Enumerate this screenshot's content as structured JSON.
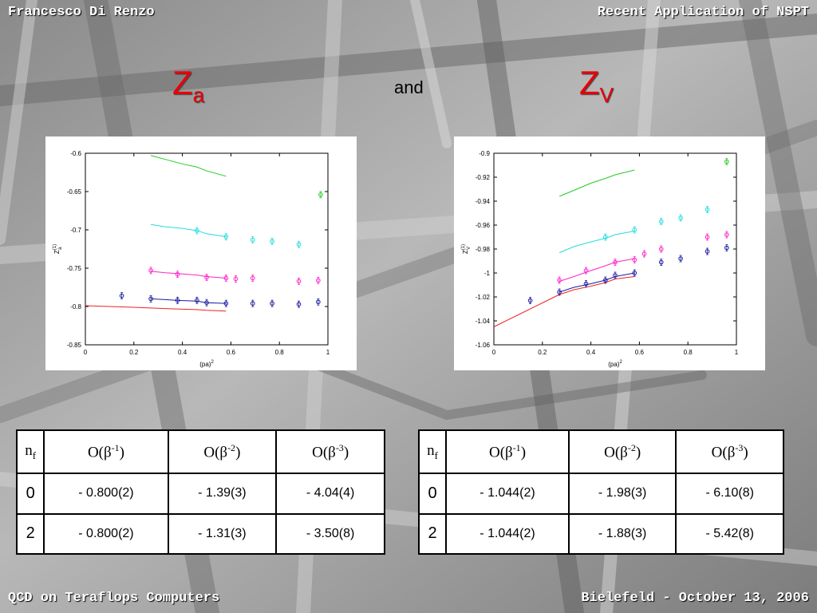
{
  "header": {
    "left": "Francesco Di Renzo",
    "right": "Recent Application of NSPT"
  },
  "footer": {
    "left": "QCD on Teraflops Computers",
    "right": "Bielefeld - October 13, 2006"
  },
  "titles": {
    "za_main": "Z",
    "za_sub": "a",
    "and": "and",
    "zv_main": "Z",
    "zv_sub": "V"
  },
  "colors": {
    "title_red": "#e8000a",
    "green": "#22cc22",
    "cyan": "#22dddd",
    "magenta": "#ff22cc",
    "blue": "#1a1aa0",
    "red": "#ee2222"
  },
  "chart_data": [
    {
      "type": "line",
      "ylabel_main": "Z",
      "ylabel_sup": "(1)",
      "ylabel_sub": "a",
      "xlabel_main": "(pa)",
      "xlabel_sup": "2",
      "xlim": [
        0,
        1
      ],
      "ylim": [
        -0.85,
        -0.6
      ],
      "xticks": [
        "0",
        "0.2",
        "0.4",
        "0.6",
        "0.8",
        "1"
      ],
      "yticks": [
        "-0.6",
        "-0.65",
        "-0.7",
        "-0.75",
        "-0.8",
        "-0.85"
      ],
      "lines": [
        {
          "color": "green",
          "x": [
            0.27,
            0.33,
            0.4,
            0.46,
            0.5,
            0.58
          ],
          "y": [
            -0.603,
            -0.608,
            -0.614,
            -0.618,
            -0.623,
            -0.63
          ]
        },
        {
          "color": "cyan",
          "x": [
            0.27,
            0.33,
            0.4,
            0.46,
            0.5,
            0.58
          ],
          "y": [
            -0.693,
            -0.696,
            -0.698,
            -0.701,
            -0.705,
            -0.709
          ]
        },
        {
          "color": "magenta",
          "x": [
            0.27,
            0.33,
            0.38,
            0.46,
            0.5,
            0.58
          ],
          "y": [
            -0.754,
            -0.756,
            -0.757,
            -0.759,
            -0.761,
            -0.763
          ]
        },
        {
          "color": "blue",
          "x": [
            0.27,
            0.33,
            0.38,
            0.46,
            0.5,
            0.58
          ],
          "y": [
            -0.79,
            -0.791,
            -0.792,
            -0.793,
            -0.795,
            -0.796
          ]
        },
        {
          "color": "red",
          "x": [
            0,
            0.1,
            0.2,
            0.27,
            0.35,
            0.46,
            0.5,
            0.58
          ],
          "y": [
            -0.799,
            -0.8,
            -0.801,
            -0.802,
            -0.803,
            -0.804,
            -0.805,
            -0.806
          ]
        }
      ],
      "points": [
        {
          "color": "green",
          "x": [
            0.97
          ],
          "y": [
            -0.654
          ]
        },
        {
          "color": "cyan",
          "x": [
            0.46,
            0.58,
            0.69,
            0.77,
            0.88
          ],
          "y": [
            -0.701,
            -0.709,
            -0.713,
            -0.715,
            -0.719
          ]
        },
        {
          "color": "magenta",
          "x": [
            0.27,
            0.38,
            0.5,
            0.58,
            0.62,
            0.69,
            0.88,
            0.96
          ],
          "y": [
            -0.753,
            -0.758,
            -0.762,
            -0.763,
            -0.764,
            -0.763,
            -0.767,
            -0.766
          ]
        },
        {
          "color": "blue",
          "x": [
            0.15,
            0.27,
            0.38,
            0.46,
            0.5,
            0.58,
            0.69,
            0.77,
            0.88,
            0.96
          ],
          "y": [
            -0.786,
            -0.79,
            -0.792,
            -0.792,
            -0.795,
            -0.796,
            -0.796,
            -0.796,
            -0.797,
            -0.794
          ]
        }
      ]
    },
    {
      "type": "line",
      "ylabel_main": "Z",
      "ylabel_sup": "(1)",
      "ylabel_sub": "V",
      "xlabel_main": "(pa)",
      "xlabel_sup": "2",
      "xlim": [
        0,
        1
      ],
      "ylim": [
        -1.06,
        -0.9
      ],
      "xticks": [
        "0",
        "0.2",
        "0.4",
        "0.6",
        "0.8",
        "1"
      ],
      "yticks": [
        "-0.9",
        "-0.92",
        "-0.94",
        "-0.96",
        "-0.98",
        "-1",
        "-1.02",
        "-1.04",
        "-1.06"
      ],
      "lines": [
        {
          "color": "green",
          "x": [
            0.27,
            0.33,
            0.4,
            0.46,
            0.5,
            0.58
          ],
          "y": [
            -0.936,
            -0.931,
            -0.925,
            -0.921,
            -0.918,
            -0.914
          ]
        },
        {
          "color": "cyan",
          "x": [
            0.27,
            0.33,
            0.4,
            0.46,
            0.5,
            0.58
          ],
          "y": [
            -0.983,
            -0.978,
            -0.974,
            -0.971,
            -0.968,
            -0.965
          ]
        },
        {
          "color": "magenta",
          "x": [
            0.27,
            0.33,
            0.4,
            0.46,
            0.5,
            0.58
          ],
          "y": [
            -1.007,
            -1.003,
            -0.998,
            -0.994,
            -0.991,
            -0.988
          ]
        },
        {
          "color": "blue",
          "x": [
            0.27,
            0.33,
            0.4,
            0.46,
            0.5,
            0.58
          ],
          "y": [
            -1.016,
            -1.012,
            -1.009,
            -1.006,
            -1.003,
            -1.0
          ]
        },
        {
          "color": "red",
          "x": [
            0,
            0.1,
            0.2,
            0.27,
            0.33,
            0.4,
            0.46,
            0.5,
            0.58
          ],
          "y": [
            -1.045,
            -1.035,
            -1.025,
            -1.018,
            -1.014,
            -1.011,
            -1.008,
            -1.005,
            -1.003
          ]
        }
      ],
      "points": [
        {
          "color": "green",
          "x": [
            0.96
          ],
          "y": [
            -0.907
          ]
        },
        {
          "color": "cyan",
          "x": [
            0.46,
            0.58,
            0.69,
            0.77,
            0.88
          ],
          "y": [
            -0.97,
            -0.964,
            -0.957,
            -0.954,
            -0.947
          ]
        },
        {
          "color": "magenta",
          "x": [
            0.27,
            0.38,
            0.5,
            0.58,
            0.62,
            0.69,
            0.88,
            0.96
          ],
          "y": [
            -1.006,
            -0.998,
            -0.991,
            -0.989,
            -0.984,
            -0.98,
            -0.97,
            -0.968
          ]
        },
        {
          "color": "blue",
          "x": [
            0.15,
            0.27,
            0.38,
            0.46,
            0.5,
            0.58,
            0.69,
            0.77,
            0.88,
            0.96
          ],
          "y": [
            -1.023,
            -1.016,
            -1.009,
            -1.006,
            -1.002,
            -1.0,
            -0.991,
            -0.988,
            -0.982,
            -0.979
          ]
        }
      ]
    }
  ],
  "tables": [
    {
      "header": {
        "nf_main": "n",
        "nf_sub": "f",
        "c1_base": "O(β",
        "c1_sup": "-1",
        "c1_close": ")",
        "c2_base": "O(β",
        "c2_sup": "-2",
        "c2_close": ")",
        "c3_base": "O(β",
        "c3_sup": "-3",
        "c3_close": ")"
      },
      "rows": [
        {
          "nf": "0",
          "c1": "- 0.800(2)",
          "c2": "- 1.39(3)",
          "c3": "- 4.04(4)"
        },
        {
          "nf": "2",
          "c1": "- 0.800(2)",
          "c2": "- 1.31(3)",
          "c3": "- 3.50(8)"
        }
      ]
    },
    {
      "header": {
        "nf_main": "n",
        "nf_sub": "f",
        "c1_base": "O(β",
        "c1_sup": "-1",
        "c1_close": ")",
        "c2_base": "O(β",
        "c2_sup": "-2",
        "c2_close": ")",
        "c3_base": "O(β",
        "c3_sup": "-3",
        "c3_close": ")"
      },
      "rows": [
        {
          "nf": "0",
          "c1": "- 1.044(2)",
          "c2": "- 1.98(3)",
          "c3": "- 6.10(8)"
        },
        {
          "nf": "2",
          "c1": "- 1.044(2)",
          "c2": "- 1.88(3)",
          "c3": "- 5.42(8)"
        }
      ]
    }
  ]
}
